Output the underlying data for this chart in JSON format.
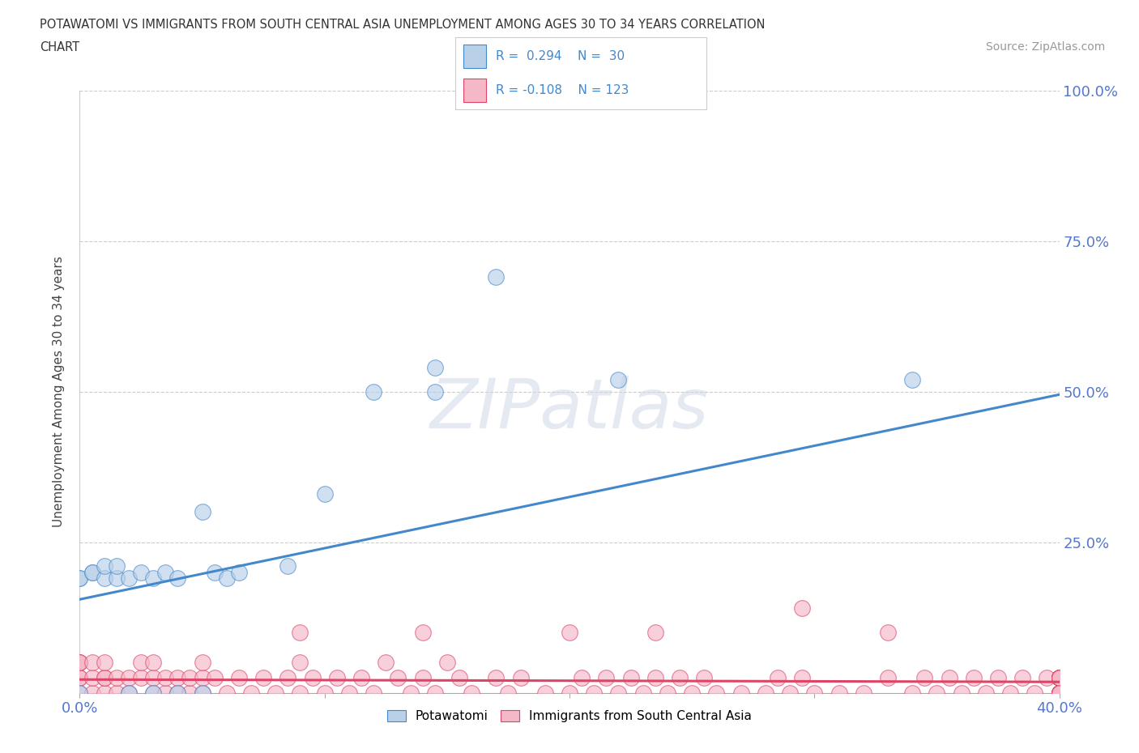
{
  "title_line1": "POTAWATOMI VS IMMIGRANTS FROM SOUTH CENTRAL ASIA UNEMPLOYMENT AMONG AGES 30 TO 34 YEARS CORRELATION",
  "title_line2": "CHART",
  "source_text": "Source: ZipAtlas.com",
  "ylabel": "Unemployment Among Ages 30 to 34 years",
  "xlim": [
    0.0,
    0.4
  ],
  "ylim": [
    0.0,
    1.0
  ],
  "background_color": "#ffffff",
  "watermark_text": "ZIPatlas",
  "potawatomi_color": "#b8d0e8",
  "immigrants_color": "#f5b8c8",
  "trend_blue": "#4488cc",
  "trend_pink": "#dd4466",
  "tick_color": "#5577cc",
  "blue_trend_y0": 0.155,
  "blue_trend_y1": 0.495,
  "pink_trend_y0": 0.022,
  "pink_trend_y1": 0.018,
  "potawatomi_x": [
    0.0,
    0.0,
    0.0,
    0.005,
    0.005,
    0.01,
    0.01,
    0.015,
    0.015,
    0.02,
    0.02,
    0.025,
    0.03,
    0.03,
    0.035,
    0.04,
    0.04,
    0.05,
    0.05,
    0.055,
    0.06,
    0.065,
    0.085,
    0.1,
    0.12,
    0.145,
    0.145,
    0.17,
    0.22,
    0.34
  ],
  "potawatomi_y": [
    0.0,
    0.19,
    0.19,
    0.2,
    0.2,
    0.19,
    0.21,
    0.19,
    0.21,
    0.0,
    0.19,
    0.2,
    0.0,
    0.19,
    0.2,
    0.0,
    0.19,
    0.0,
    0.3,
    0.2,
    0.19,
    0.2,
    0.21,
    0.33,
    0.5,
    0.5,
    0.54,
    0.69,
    0.52,
    0.52
  ],
  "immigrants_x": [
    0.0,
    0.0,
    0.0,
    0.0,
    0.0,
    0.0,
    0.005,
    0.005,
    0.005,
    0.01,
    0.01,
    0.01,
    0.01,
    0.015,
    0.015,
    0.02,
    0.02,
    0.025,
    0.025,
    0.03,
    0.03,
    0.03,
    0.035,
    0.035,
    0.04,
    0.04,
    0.045,
    0.045,
    0.05,
    0.05,
    0.05,
    0.055,
    0.06,
    0.065,
    0.07,
    0.075,
    0.08,
    0.085,
    0.09,
    0.09,
    0.095,
    0.1,
    0.105,
    0.11,
    0.115,
    0.12,
    0.125,
    0.13,
    0.135,
    0.14,
    0.145,
    0.15,
    0.155,
    0.16,
    0.17,
    0.175,
    0.18,
    0.19,
    0.2,
    0.205,
    0.21,
    0.215,
    0.22,
    0.225,
    0.23,
    0.235,
    0.24,
    0.245,
    0.25,
    0.255,
    0.26,
    0.27,
    0.28,
    0.285,
    0.29,
    0.295,
    0.3,
    0.31,
    0.32,
    0.33,
    0.34,
    0.345,
    0.35,
    0.355,
    0.36,
    0.365,
    0.37,
    0.375,
    0.38,
    0.385,
    0.39,
    0.395,
    0.4,
    0.4,
    0.4,
    0.4,
    0.4,
    0.4,
    0.4,
    0.4,
    0.4,
    0.4,
    0.4,
    0.4,
    0.4,
    0.4,
    0.4,
    0.4,
    0.4,
    0.4,
    0.4,
    0.4,
    0.4,
    0.4,
    0.4,
    0.4,
    0.4,
    0.4,
    0.4
  ],
  "immigrants_y": [
    0.0,
    0.025,
    0.05,
    0.05,
    0.025,
    0.05,
    0.0,
    0.025,
    0.05,
    0.0,
    0.025,
    0.025,
    0.05,
    0.0,
    0.025,
    0.0,
    0.025,
    0.025,
    0.05,
    0.0,
    0.025,
    0.05,
    0.0,
    0.025,
    0.0,
    0.025,
    0.0,
    0.025,
    0.0,
    0.025,
    0.05,
    0.025,
    0.0,
    0.025,
    0.0,
    0.025,
    0.0,
    0.025,
    0.0,
    0.05,
    0.025,
    0.0,
    0.025,
    0.0,
    0.025,
    0.0,
    0.05,
    0.025,
    0.0,
    0.025,
    0.0,
    0.05,
    0.025,
    0.0,
    0.025,
    0.0,
    0.025,
    0.0,
    0.0,
    0.025,
    0.0,
    0.025,
    0.0,
    0.025,
    0.0,
    0.025,
    0.0,
    0.025,
    0.0,
    0.025,
    0.0,
    0.0,
    0.0,
    0.025,
    0.0,
    0.025,
    0.0,
    0.0,
    0.0,
    0.025,
    0.0,
    0.025,
    0.0,
    0.025,
    0.0,
    0.025,
    0.0,
    0.025,
    0.0,
    0.025,
    0.0,
    0.025,
    0.0,
    0.025,
    0.0,
    0.025,
    0.0,
    0.025,
    0.0,
    0.025,
    0.0,
    0.025,
    0.0,
    0.025,
    0.0,
    0.025,
    0.0,
    0.025,
    0.0,
    0.025,
    0.0,
    0.025,
    0.0,
    0.025,
    0.0,
    0.025,
    0.0,
    0.025,
    0.0
  ],
  "immigrants_extra_x": [
    0.09,
    0.14,
    0.2,
    0.235,
    0.295,
    0.33
  ],
  "immigrants_extra_y": [
    0.1,
    0.1,
    0.1,
    0.1,
    0.14,
    0.1
  ]
}
